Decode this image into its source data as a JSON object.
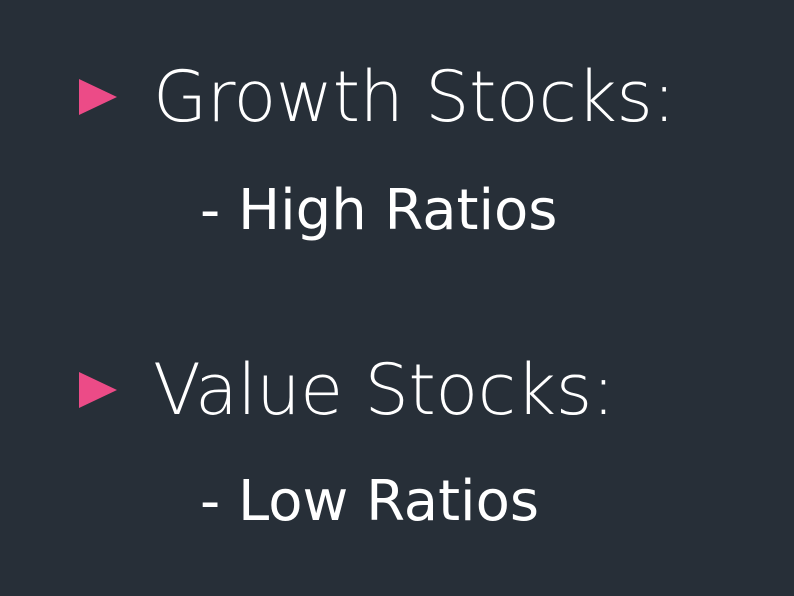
{
  "slide": {
    "accent_color": "#ec4b87",
    "background_color": "#272f38",
    "text_color": "#ffffff",
    "bullets": [
      {
        "icon": "triangle-right-icon",
        "heading": "Growth Stocks:",
        "detail": "- High Ratios"
      },
      {
        "icon": "triangle-right-icon",
        "heading": "Value Stocks:",
        "detail": "- Low Ratios"
      }
    ]
  }
}
